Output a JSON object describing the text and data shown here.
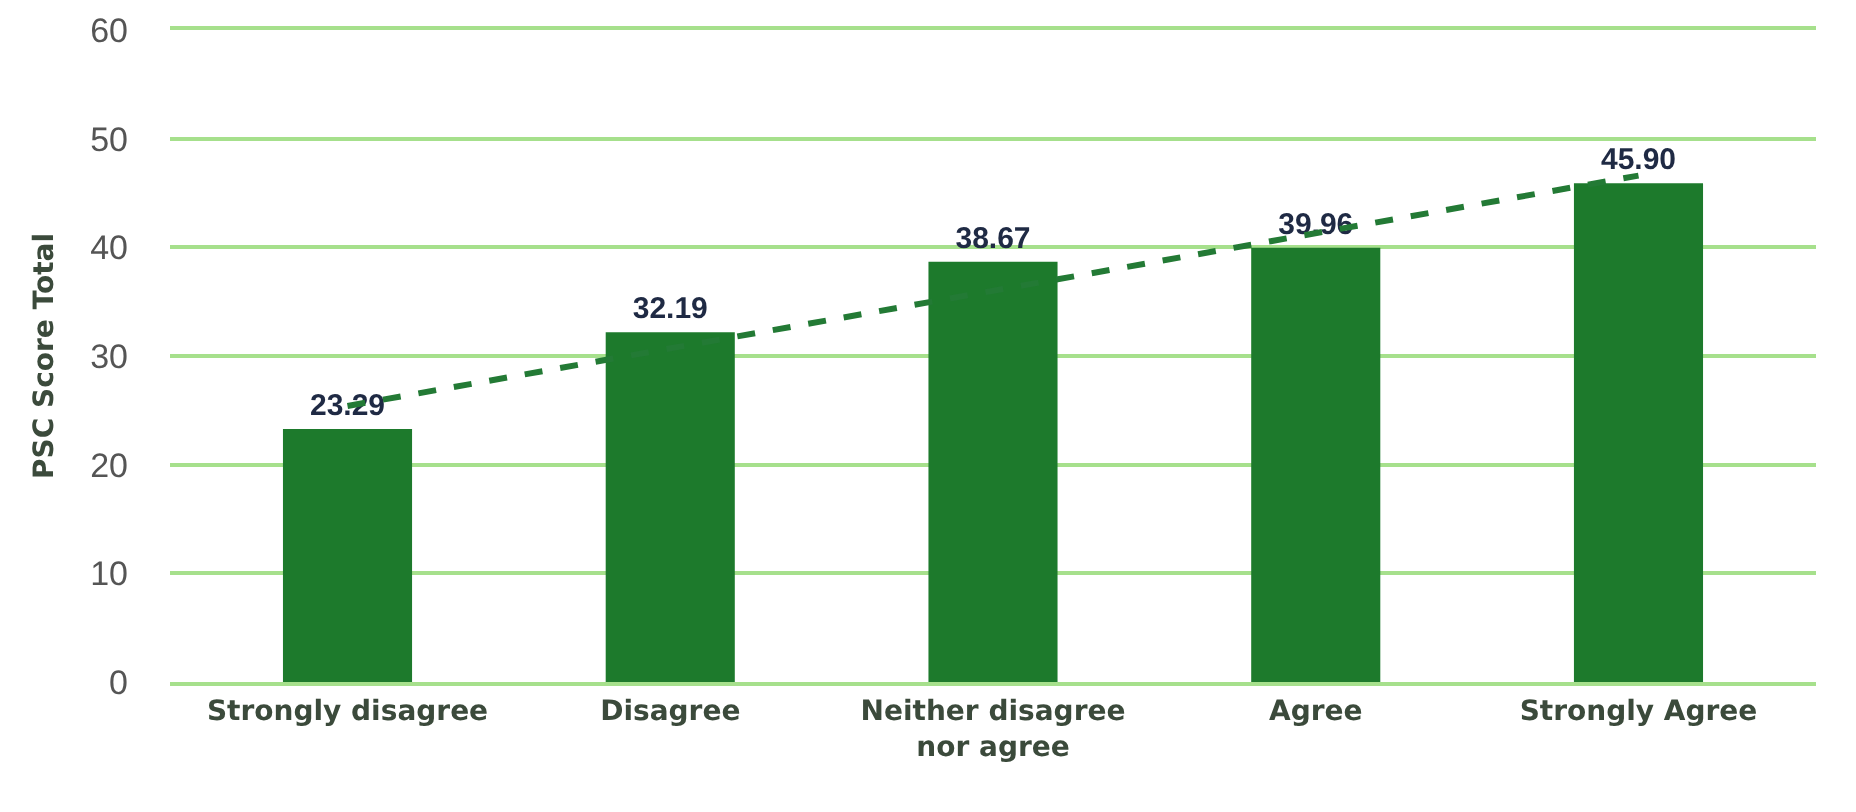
{
  "chart_data": {
    "type": "bar",
    "ylabel": "PSC Score Total",
    "categories": [
      "Strongly disagree",
      "Disagree",
      "Neither disagree\nnor agree",
      "Agree",
      "Strongly Agree"
    ],
    "series": [
      {
        "color": "#1d7a2c",
        "values": [
          23.29,
          32.19,
          38.67,
          39.96,
          45.9
        ],
        "value_labels": [
          "23.29",
          "32.19",
          "38.67",
          "39.96",
          "45.90"
        ]
      },
      {
        "type": "line",
        "color": "#237a35",
        "line_style": "dashed",
        "x": [
          "Strongly disagree",
          "Strongly Agree"
        ],
        "values": [
          25.4,
          46.6
        ]
      }
    ],
    "ylim": [
      0,
      60
    ],
    "yticks": [
      0,
      10,
      20,
      30,
      40,
      50,
      60
    ],
    "grid": "y"
  }
}
